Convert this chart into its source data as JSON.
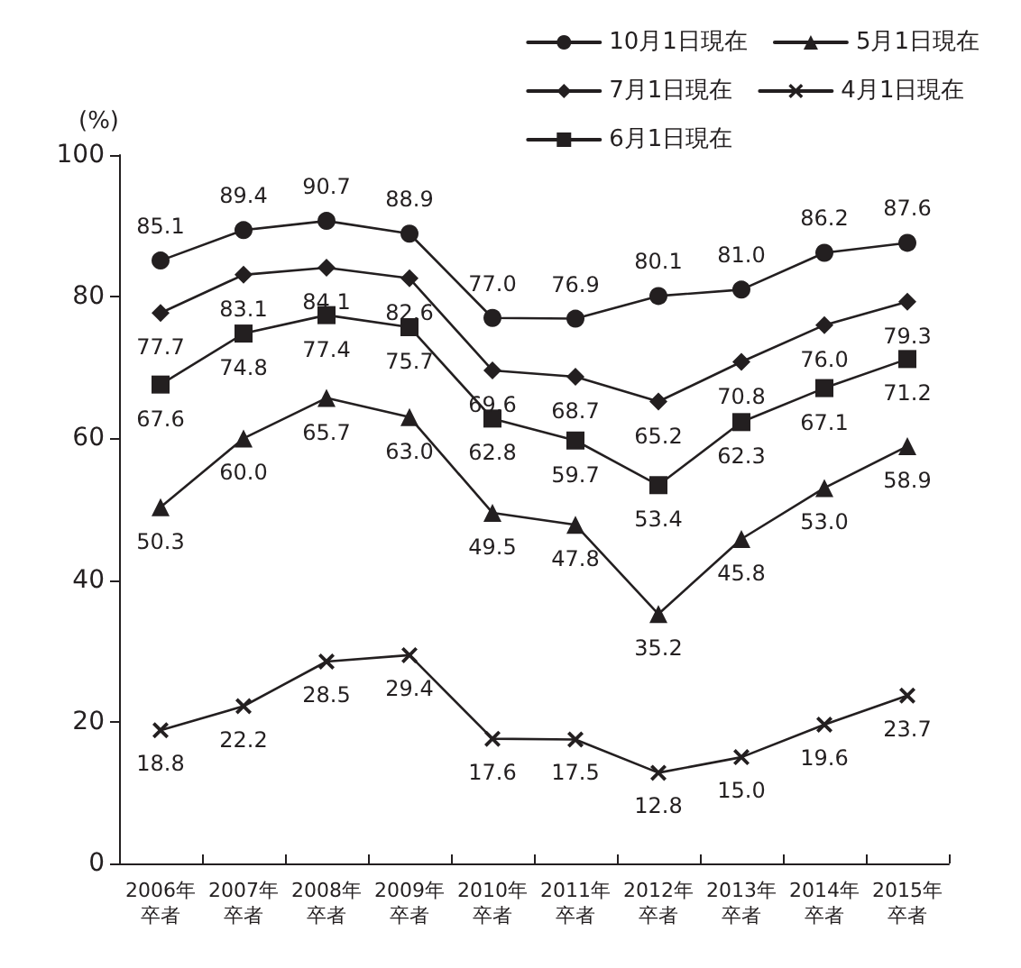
{
  "chart_data": {
    "type": "line",
    "ylabel": "(%)",
    "categories": [
      "2006年卒者",
      "2007年卒者",
      "2008年卒者",
      "2009年卒者",
      "2010年卒者",
      "2011年卒者",
      "2012年卒者",
      "2013年卒者",
      "2014年卒者",
      "2015年卒者"
    ],
    "series": [
      {
        "name": "10月1日現在",
        "color": "#231f20",
        "marker": "circle",
        "values": [
          85.1,
          89.4,
          90.7,
          88.9,
          77.0,
          76.9,
          80.1,
          81.0,
          86.2,
          87.6
        ],
        "value_labels": [
          "85.1",
          "89.4",
          "90.7",
          "88.9",
          "77.0",
          "76.9",
          "80.1",
          "81.0",
          "86.2",
          "87.6"
        ]
      },
      {
        "name": "5月1日現在",
        "color": "#231f20",
        "marker": "triangle",
        "values": [
          50.3,
          60.0,
          65.7,
          63.0,
          49.5,
          47.8,
          35.2,
          45.8,
          53.0,
          58.9
        ],
        "value_labels": [
          "50.3",
          "60.0",
          "65.7",
          "63.0",
          "49.5",
          "47.8",
          "35.2",
          "45.8",
          "53.0",
          "58.9"
        ]
      },
      {
        "name": "7月1日現在",
        "color": "#231f20",
        "marker": "diamond",
        "values": [
          77.7,
          83.1,
          84.1,
          82.6,
          69.6,
          68.7,
          65.2,
          70.8,
          76.0,
          79.3
        ],
        "value_labels": [
          "77.7",
          "83.1",
          "84.1",
          "82.6",
          "69.6",
          "68.7",
          "65.2",
          "70.8",
          "76.0",
          "79.3"
        ]
      },
      {
        "name": "4月1日現在",
        "color": "#231f20",
        "marker": "cross",
        "values": [
          18.8,
          22.2,
          28.5,
          29.4,
          17.6,
          17.5,
          12.8,
          15.0,
          19.6,
          23.7
        ],
        "value_labels": [
          "18.8",
          "22.2",
          "28.5",
          "29.4",
          "17.6",
          "17.5",
          "12.8",
          "15.0",
          "19.6",
          "23.7"
        ]
      },
      {
        "name": "6月1日現在",
        "color": "#231f20",
        "marker": "square",
        "values": [
          67.6,
          74.8,
          77.4,
          75.7,
          62.8,
          59.7,
          53.4,
          62.3,
          67.1,
          71.2
        ],
        "value_labels": [
          "67.6",
          "74.8",
          "77.4",
          "75.7",
          "62.8",
          "59.7",
          "53.4",
          "62.3",
          "67.1",
          "71.2"
        ]
      }
    ],
    "ylim": [
      0,
      100
    ],
    "yticks": [
      0,
      20,
      40,
      60,
      80,
      100
    ],
    "grid": false,
    "legend": "top right",
    "line_style": "solid"
  }
}
